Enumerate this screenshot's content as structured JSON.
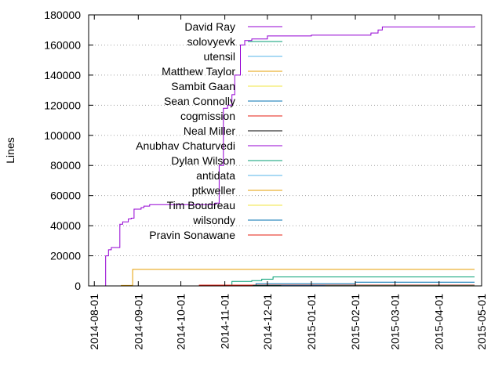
{
  "chart_data": {
    "type": "line",
    "ylabel": "Lines",
    "xlabel": "",
    "grid": "horizontal dotted",
    "legend_position": "top-left, inside plot",
    "xlim": [
      "2014-07-28",
      "2015-05-01"
    ],
    "ylim": [
      0,
      180000
    ],
    "y_ticks": [
      0,
      20000,
      40000,
      60000,
      80000,
      100000,
      120000,
      140000,
      160000,
      180000
    ],
    "y_tick_labels": [
      "0",
      "20000",
      "40000",
      "60000",
      "80000",
      "100000",
      "120000",
      "140000",
      "160000",
      "180000"
    ],
    "x_ticks": [
      "2014-08-01",
      "2014-09-01",
      "2014-10-01",
      "2014-11-01",
      "2014-12-01",
      "2015-01-01",
      "2015-02-01",
      "2015-03-01",
      "2015-04-01",
      "2015-05-01"
    ],
    "series": [
      {
        "name": "David Ray",
        "color": "#9400d3",
        "x": [
          "2014-08-08",
          "2014-08-09",
          "2014-08-11",
          "2014-08-13",
          "2014-08-19",
          "2014-08-21",
          "2014-08-25",
          "2014-08-27",
          "2014-08-29",
          "2014-09-03",
          "2014-09-05",
          "2014-09-09",
          "2014-09-14",
          "2014-10-16",
          "2014-10-25",
          "2014-10-28",
          "2014-10-31",
          "2014-11-03",
          "2014-11-06",
          "2014-11-08",
          "2014-11-12",
          "2014-11-15",
          "2014-11-20",
          "2014-12-01",
          "2015-01-01",
          "2015-02-07",
          "2015-02-12",
          "2015-02-17",
          "2015-02-20",
          "2015-04-26"
        ],
        "y": [
          0,
          20000,
          24000,
          25500,
          41000,
          42500,
          44500,
          45000,
          51000,
          52000,
          53000,
          54000,
          54000,
          54000,
          55000,
          80000,
          118000,
          120000,
          127000,
          140000,
          160000,
          163000,
          164000,
          166000,
          166500,
          166500,
          168000,
          170000,
          172000,
          172500
        ]
      },
      {
        "name": "solovyevk",
        "color": "#009e73",
        "x": [
          "2014-11-05",
          "2014-11-06",
          "2014-11-20",
          "2014-11-27",
          "2014-12-05",
          "2015-04-26"
        ],
        "y": [
          0,
          3000,
          3500,
          4500,
          6000,
          6000
        ]
      },
      {
        "name": "utensil",
        "color": "#56b4e9",
        "x": [
          "2014-11-20",
          "2014-11-21",
          "2015-04-26"
        ],
        "y": [
          0,
          100,
          100
        ]
      },
      {
        "name": "Matthew Taylor",
        "color": "#e69f00",
        "x": [
          "2014-08-08",
          "2014-08-20",
          "2014-08-28",
          "2015-04-26"
        ],
        "y": [
          0,
          300,
          11000,
          11000
        ]
      },
      {
        "name": "Sambit Gaan",
        "color": "#f0e442",
        "x": [
          "2014-11-20",
          "2014-11-21",
          "2015-04-26"
        ],
        "y": [
          0,
          50,
          50
        ]
      },
      {
        "name": "Sean Connolly",
        "color": "#0072b2",
        "x": [
          "2014-11-22",
          "2014-11-23",
          "2015-02-01",
          "2015-04-26"
        ],
        "y": [
          0,
          1500,
          2500,
          2500
        ]
      },
      {
        "name": "cogmission",
        "color": "#e51e10",
        "x": [
          "2014-10-13",
          "2014-10-14",
          "2015-04-26"
        ],
        "y": [
          0,
          500,
          500
        ]
      },
      {
        "name": "Neal Miller",
        "color": "#000000",
        "x": [
          "2014-11-20",
          "2014-11-21",
          "2015-04-26"
        ],
        "y": [
          0,
          300,
          300
        ]
      },
      {
        "name": "Anubhav Chaturvedi",
        "color": "#9400d3",
        "x": [
          "2014-12-10",
          "2014-12-11",
          "2015-04-26"
        ],
        "y": [
          0,
          200,
          200
        ]
      },
      {
        "name": "Dylan Wilson",
        "color": "#009e73",
        "x": [
          "2014-11-20",
          "2014-11-21",
          "2015-04-26"
        ],
        "y": [
          0,
          150,
          150
        ]
      },
      {
        "name": "antidata",
        "color": "#56b4e9",
        "x": [
          "2014-12-10",
          "2014-12-11",
          "2015-04-26"
        ],
        "y": [
          0,
          100,
          100
        ]
      },
      {
        "name": "ptkweller",
        "color": "#e69f00",
        "x": [
          "2015-01-10",
          "2015-01-11",
          "2015-04-26"
        ],
        "y": [
          0,
          80,
          80
        ]
      },
      {
        "name": "Tim Boudreau",
        "color": "#f0e442",
        "x": [
          "2015-02-01",
          "2015-02-02",
          "2015-04-26"
        ],
        "y": [
          0,
          60,
          60
        ]
      },
      {
        "name": "wilsondy",
        "color": "#0072b2",
        "x": [
          "2014-11-25",
          "2014-11-26",
          "2015-04-26"
        ],
        "y": [
          0,
          40,
          40
        ]
      },
      {
        "name": "Pravin Sonawane",
        "color": "#e51e10",
        "x": [
          "2015-02-15",
          "2015-02-16",
          "2015-04-26"
        ],
        "y": [
          0,
          20,
          20
        ]
      }
    ]
  }
}
